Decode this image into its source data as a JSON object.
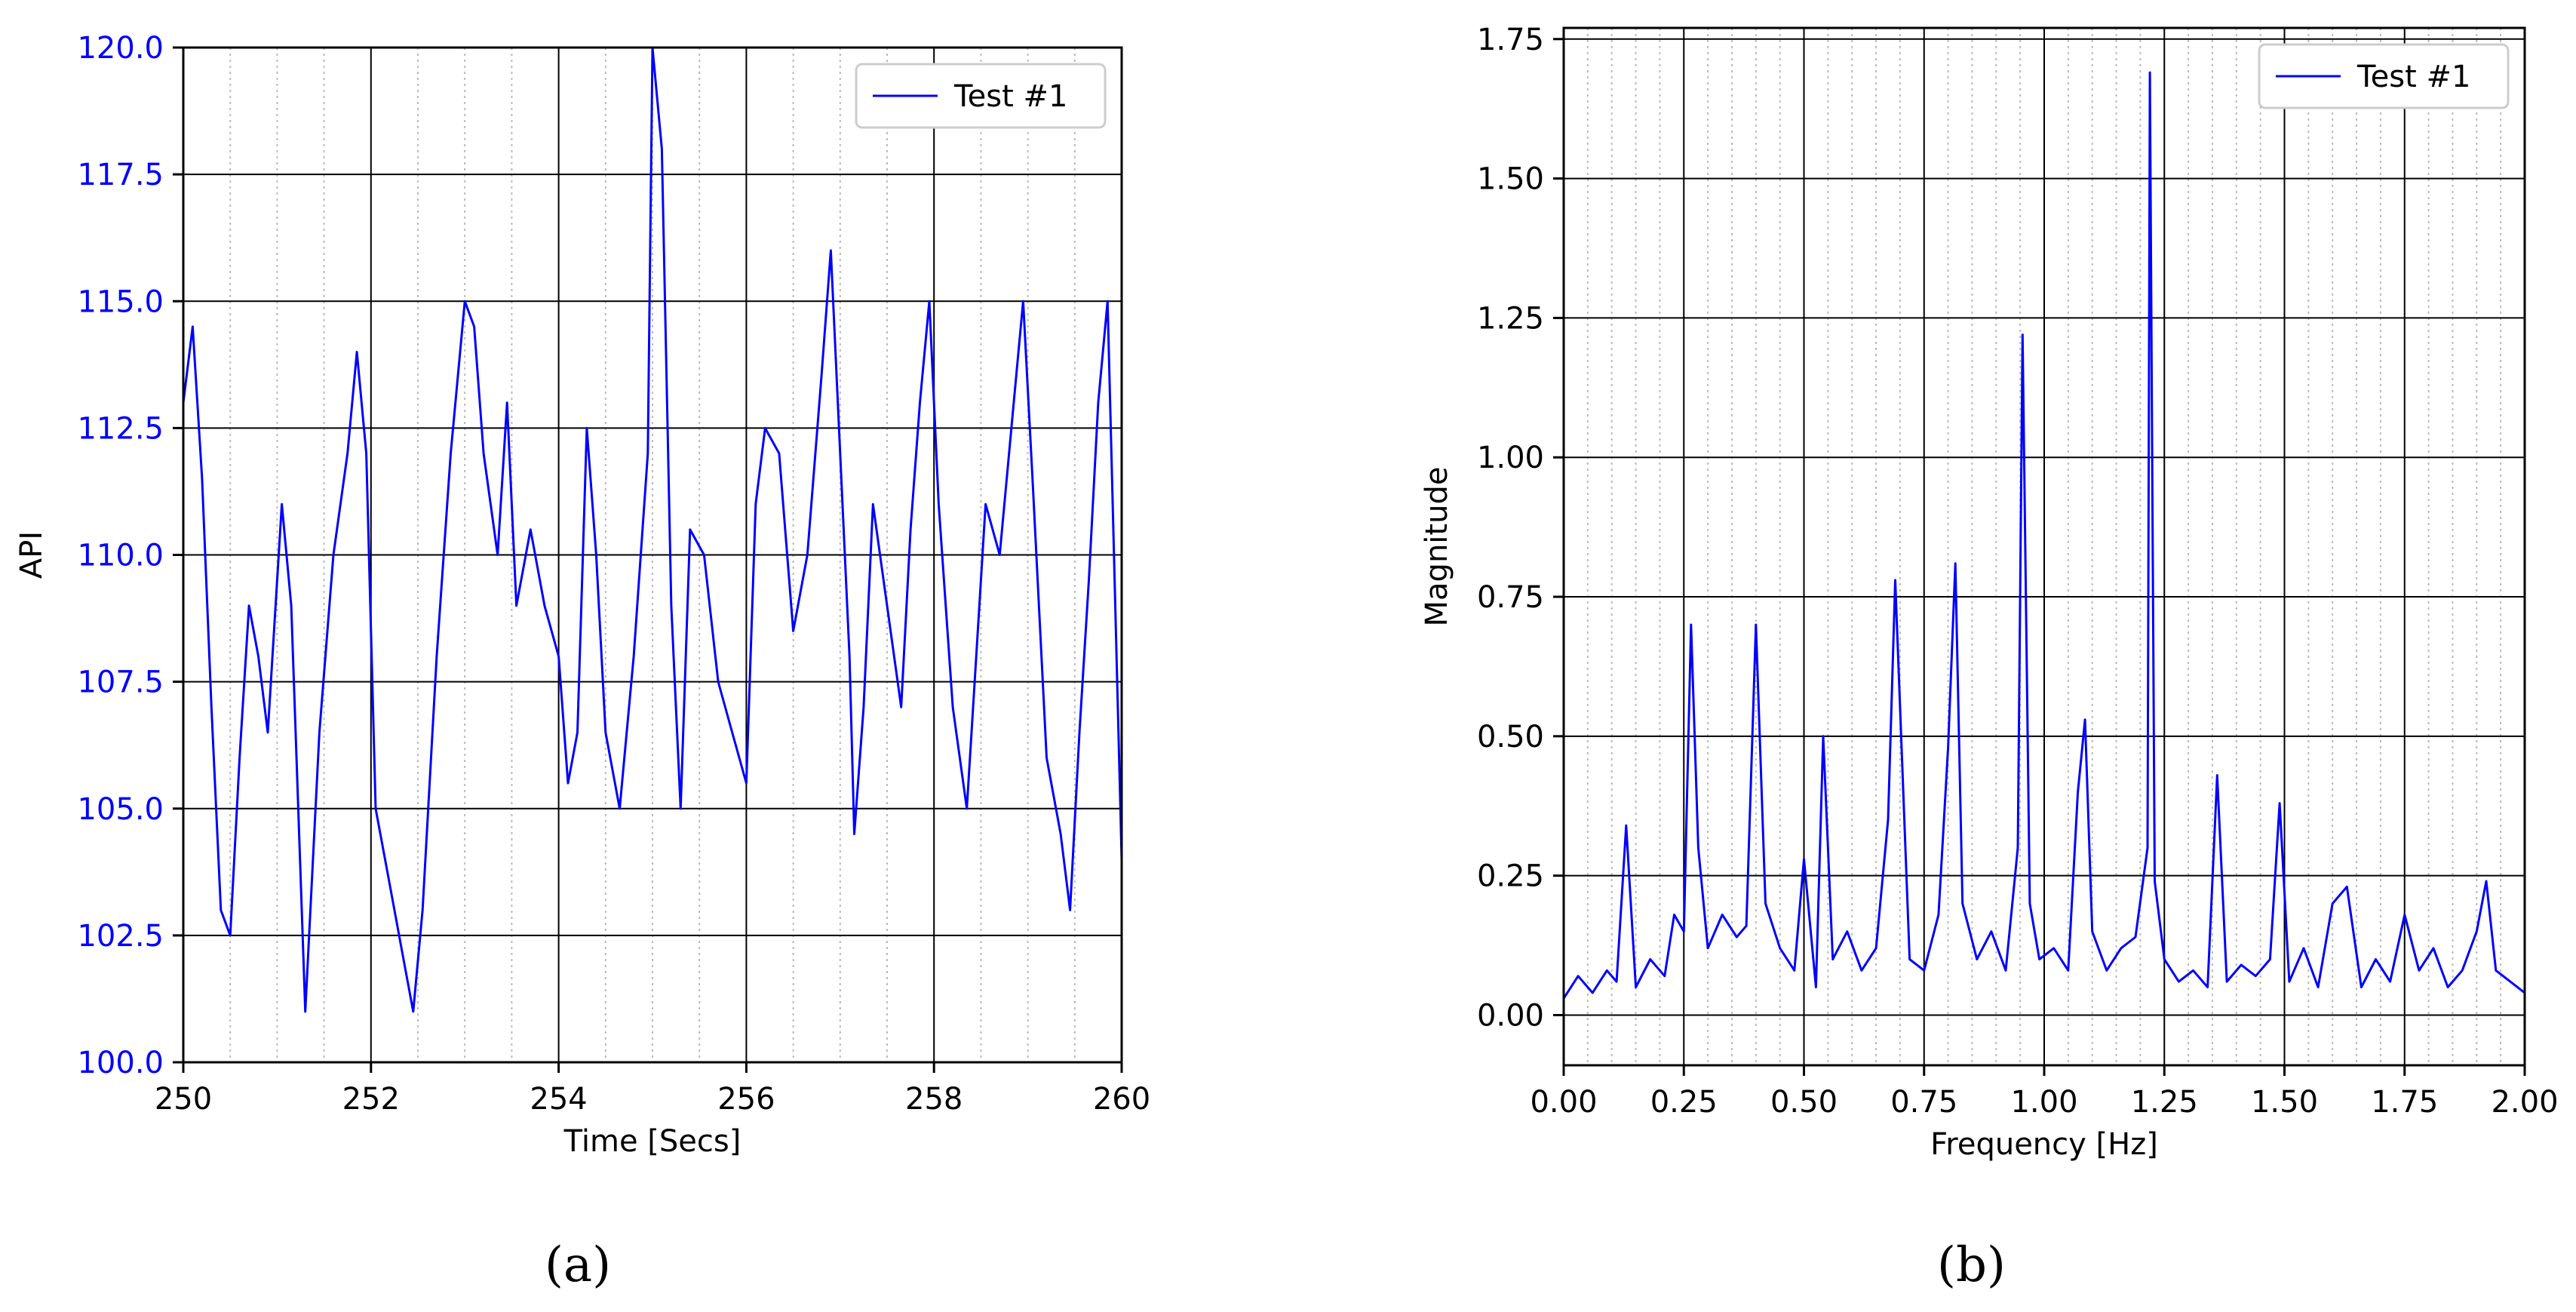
{
  "captions": {
    "a": "(a)",
    "b": "(b)"
  },
  "colors": {
    "series": "#0000ff",
    "ytick_a": "#0000ff",
    "ytick_b": "#000000",
    "grid_major": "#000000",
    "grid_minor": "#bbbbbb"
  },
  "chart_data": [
    {
      "type": "line",
      "xlabel": "Time [Secs]",
      "ylabel": "API",
      "xlim": [
        250,
        260
      ],
      "ylim": [
        100,
        120
      ],
      "xticks": [
        "250",
        "252",
        "254",
        "256",
        "258",
        "260"
      ],
      "yticks": [
        "100.0",
        "102.5",
        "105.0",
        "107.5",
        "110.0",
        "112.5",
        "115.0",
        "117.5",
        "120.0"
      ],
      "grid": true,
      "legend": "top-right",
      "series": [
        {
          "name": "Test #1",
          "x": [
            250.0,
            250.1,
            250.2,
            250.3,
            250.4,
            250.5,
            250.6,
            250.7,
            250.8,
            250.9,
            251.05,
            251.15,
            251.3,
            251.45,
            251.6,
            251.75,
            251.85,
            251.95,
            252.05,
            252.2,
            252.35,
            252.45,
            252.55,
            252.7,
            252.85,
            253.0,
            253.1,
            253.2,
            253.35,
            253.45,
            253.55,
            253.7,
            253.85,
            254.0,
            254.1,
            254.2,
            254.3,
            254.4,
            254.5,
            254.65,
            254.8,
            254.95,
            255.0,
            255.1,
            255.2,
            255.3,
            255.4,
            255.55,
            255.7,
            255.85,
            256.0,
            256.1,
            256.2,
            256.35,
            256.5,
            256.65,
            256.8,
            256.9,
            257.0,
            257.1,
            257.15,
            257.25,
            257.35,
            257.5,
            257.65,
            257.75,
            257.85,
            257.95,
            258.05,
            258.2,
            258.35,
            258.45,
            258.55,
            258.7,
            258.85,
            258.95,
            259.05,
            259.2,
            259.35,
            259.45,
            259.55,
            259.65,
            259.75,
            259.85,
            260.0
          ],
          "y": [
            113.0,
            114.5,
            111.5,
            107.0,
            103.0,
            102.5,
            106.0,
            109.0,
            108.0,
            106.5,
            111.0,
            109.0,
            101.0,
            106.5,
            110.0,
            112.0,
            114.0,
            112.0,
            105.0,
            103.5,
            102.0,
            101.0,
            103.0,
            108.0,
            112.0,
            115.0,
            114.5,
            112.0,
            110.0,
            113.0,
            109.0,
            110.5,
            109.0,
            108.0,
            105.5,
            106.5,
            112.5,
            110.0,
            106.5,
            105.0,
            108.0,
            112.0,
            120.0,
            118.0,
            109.0,
            105.0,
            110.5,
            110.0,
            107.5,
            106.5,
            105.5,
            111.0,
            112.5,
            112.0,
            108.5,
            110.0,
            113.5,
            116.0,
            112.0,
            108.0,
            104.5,
            107.0,
            111.0,
            109.0,
            107.0,
            110.5,
            113.0,
            115.0,
            111.0,
            107.0,
            105.0,
            108.0,
            111.0,
            110.0,
            113.0,
            115.0,
            111.5,
            106.0,
            104.5,
            103.0,
            106.5,
            109.5,
            113.0,
            115.0,
            104.0
          ]
        }
      ]
    },
    {
      "type": "line",
      "xlabel": "Frequency [Hz]",
      "ylabel": "Magnitude",
      "xlim": [
        0,
        2
      ],
      "ylim": [
        -0.09,
        1.77
      ],
      "xticks": [
        "0.00",
        "0.25",
        "0.50",
        "0.75",
        "1.00",
        "1.25",
        "1.50",
        "1.75",
        "2.00"
      ],
      "yticks": [
        "0.00",
        "0.25",
        "0.50",
        "0.75",
        "1.00",
        "1.25",
        "1.50",
        "1.75"
      ],
      "grid": true,
      "legend": "top-right",
      "series": [
        {
          "name": "Test #1",
          "x": [
            0.0,
            0.03,
            0.06,
            0.09,
            0.11,
            0.13,
            0.15,
            0.18,
            0.21,
            0.23,
            0.25,
            0.265,
            0.28,
            0.3,
            0.33,
            0.36,
            0.38,
            0.4,
            0.42,
            0.45,
            0.48,
            0.5,
            0.525,
            0.54,
            0.56,
            0.59,
            0.62,
            0.65,
            0.675,
            0.69,
            0.72,
            0.75,
            0.78,
            0.8,
            0.815,
            0.83,
            0.86,
            0.89,
            0.92,
            0.945,
            0.955,
            0.97,
            0.99,
            1.02,
            1.05,
            1.07,
            1.085,
            1.1,
            1.13,
            1.16,
            1.19,
            1.215,
            1.22,
            1.23,
            1.25,
            1.28,
            1.31,
            1.34,
            1.36,
            1.38,
            1.41,
            1.44,
            1.47,
            1.49,
            1.51,
            1.54,
            1.57,
            1.6,
            1.63,
            1.66,
            1.69,
            1.72,
            1.75,
            1.78,
            1.81,
            1.84,
            1.87,
            1.9,
            1.92,
            1.94,
            1.97,
            2.0
          ],
          "y": [
            0.03,
            0.07,
            0.04,
            0.08,
            0.06,
            0.34,
            0.05,
            0.1,
            0.07,
            0.18,
            0.15,
            0.7,
            0.3,
            0.12,
            0.18,
            0.14,
            0.16,
            0.7,
            0.2,
            0.12,
            0.08,
            0.28,
            0.05,
            0.5,
            0.1,
            0.15,
            0.08,
            0.12,
            0.35,
            0.78,
            0.1,
            0.08,
            0.18,
            0.48,
            0.81,
            0.2,
            0.1,
            0.15,
            0.08,
            0.3,
            1.22,
            0.2,
            0.1,
            0.12,
            0.08,
            0.4,
            0.53,
            0.15,
            0.08,
            0.12,
            0.14,
            0.3,
            1.69,
            0.24,
            0.1,
            0.06,
            0.08,
            0.05,
            0.43,
            0.06,
            0.09,
            0.07,
            0.1,
            0.38,
            0.06,
            0.12,
            0.05,
            0.2,
            0.23,
            0.05,
            0.1,
            0.06,
            0.18,
            0.08,
            0.12,
            0.05,
            0.08,
            0.15,
            0.24,
            0.08,
            0.06,
            0.04
          ]
        }
      ]
    }
  ]
}
